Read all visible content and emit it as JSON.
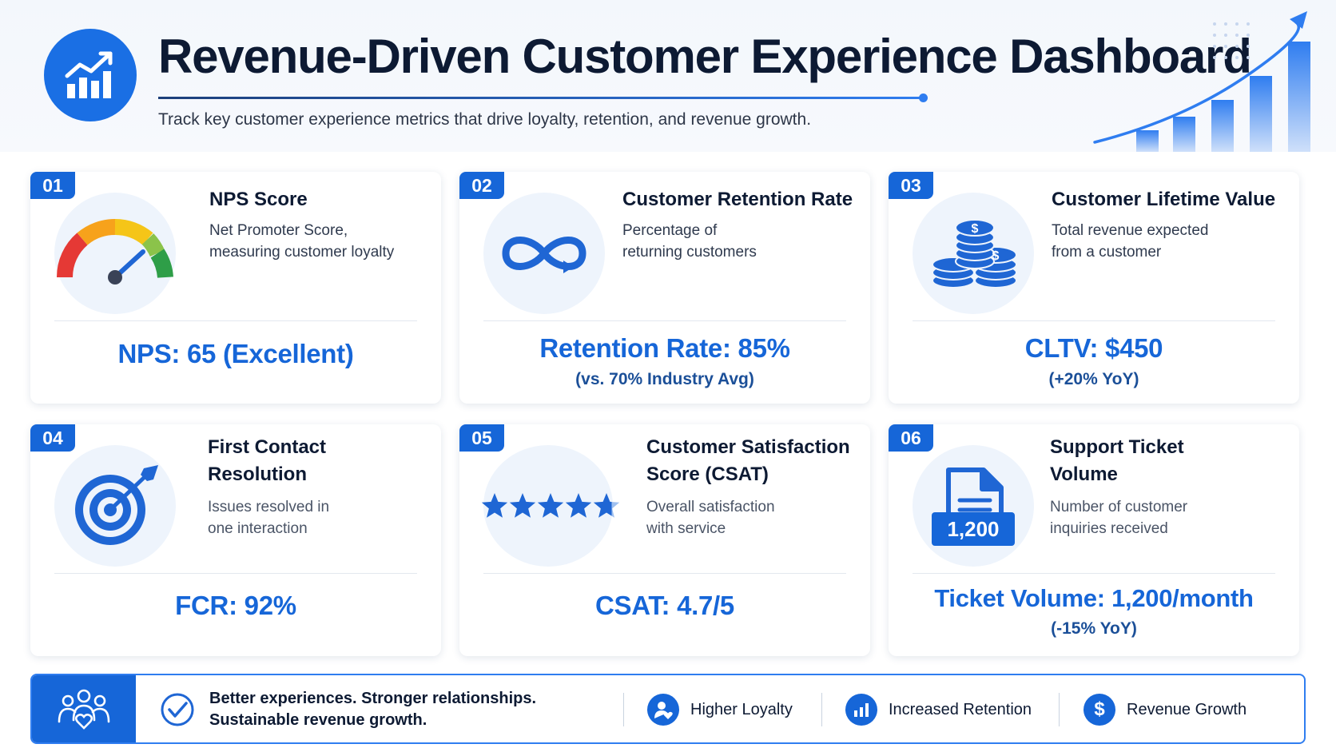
{
  "header": {
    "title": "Revenue-Driven Customer Experience Dashboard",
    "subtitle": "Track key customer experience metrics that drive loyalty, retention, and revenue growth.",
    "logo_icon": "bar-chart-up-icon",
    "accent": "#1666d8"
  },
  "cards": [
    {
      "number": "01",
      "title": "NPS Score",
      "description_line1": "Net Promoter Score,",
      "description_line2": "measuring customer loyalty",
      "metric": "NPS: 65 (Excellent)",
      "icon": "gauge-icon"
    },
    {
      "number": "02",
      "title": "Customer Retention Rate",
      "description_line1": "Percentage of",
      "description_line2": "returning customers",
      "metric": "Retention Rate: 85%",
      "metric_sub": "(vs. 70% Industry Avg)",
      "icon": "infinity-icon"
    },
    {
      "number": "03",
      "title": "Customer Lifetime Value",
      "description_line1": "Total revenue expected",
      "description_line2": "from a customer",
      "metric": "CLTV: $450",
      "metric_sub": "(+20% YoY)",
      "icon": "coins-icon"
    },
    {
      "number": "04",
      "title_line1": "First Contact",
      "title_line2": "Resolution",
      "description_line1": "Issues resolved in",
      "description_line2": "one interaction",
      "metric": "FCR: 92%",
      "icon": "target-icon"
    },
    {
      "number": "05",
      "title_line1": "Customer Satisfaction",
      "title_line2": "Score (CSAT)",
      "description_line1": "Overall satisfaction",
      "description_line2": "with service",
      "metric": "CSAT: 4.7/5",
      "stars": 4.7,
      "icon": "stars-icon"
    },
    {
      "number": "06",
      "title_line1": "Support Ticket",
      "title_line2": "Volume",
      "description_line1": "Number of customer",
      "description_line2": "inquiries received",
      "metric": "Ticket Volume: 1,200/month",
      "metric_sub": "(-15% YoY)",
      "icon_label": "1,200",
      "icon": "ticket-document-icon"
    }
  ],
  "footer": {
    "tagline_line1": "Better experiences. Stronger relationships.",
    "tagline_line2": "Sustainable revenue growth.",
    "items": [
      {
        "label": "Higher Loyalty",
        "icon": "user-heart-icon"
      },
      {
        "label": "Increased Retention",
        "icon": "bar-chart-icon"
      },
      {
        "label": "Revenue Growth",
        "icon": "dollar-icon"
      }
    ]
  }
}
